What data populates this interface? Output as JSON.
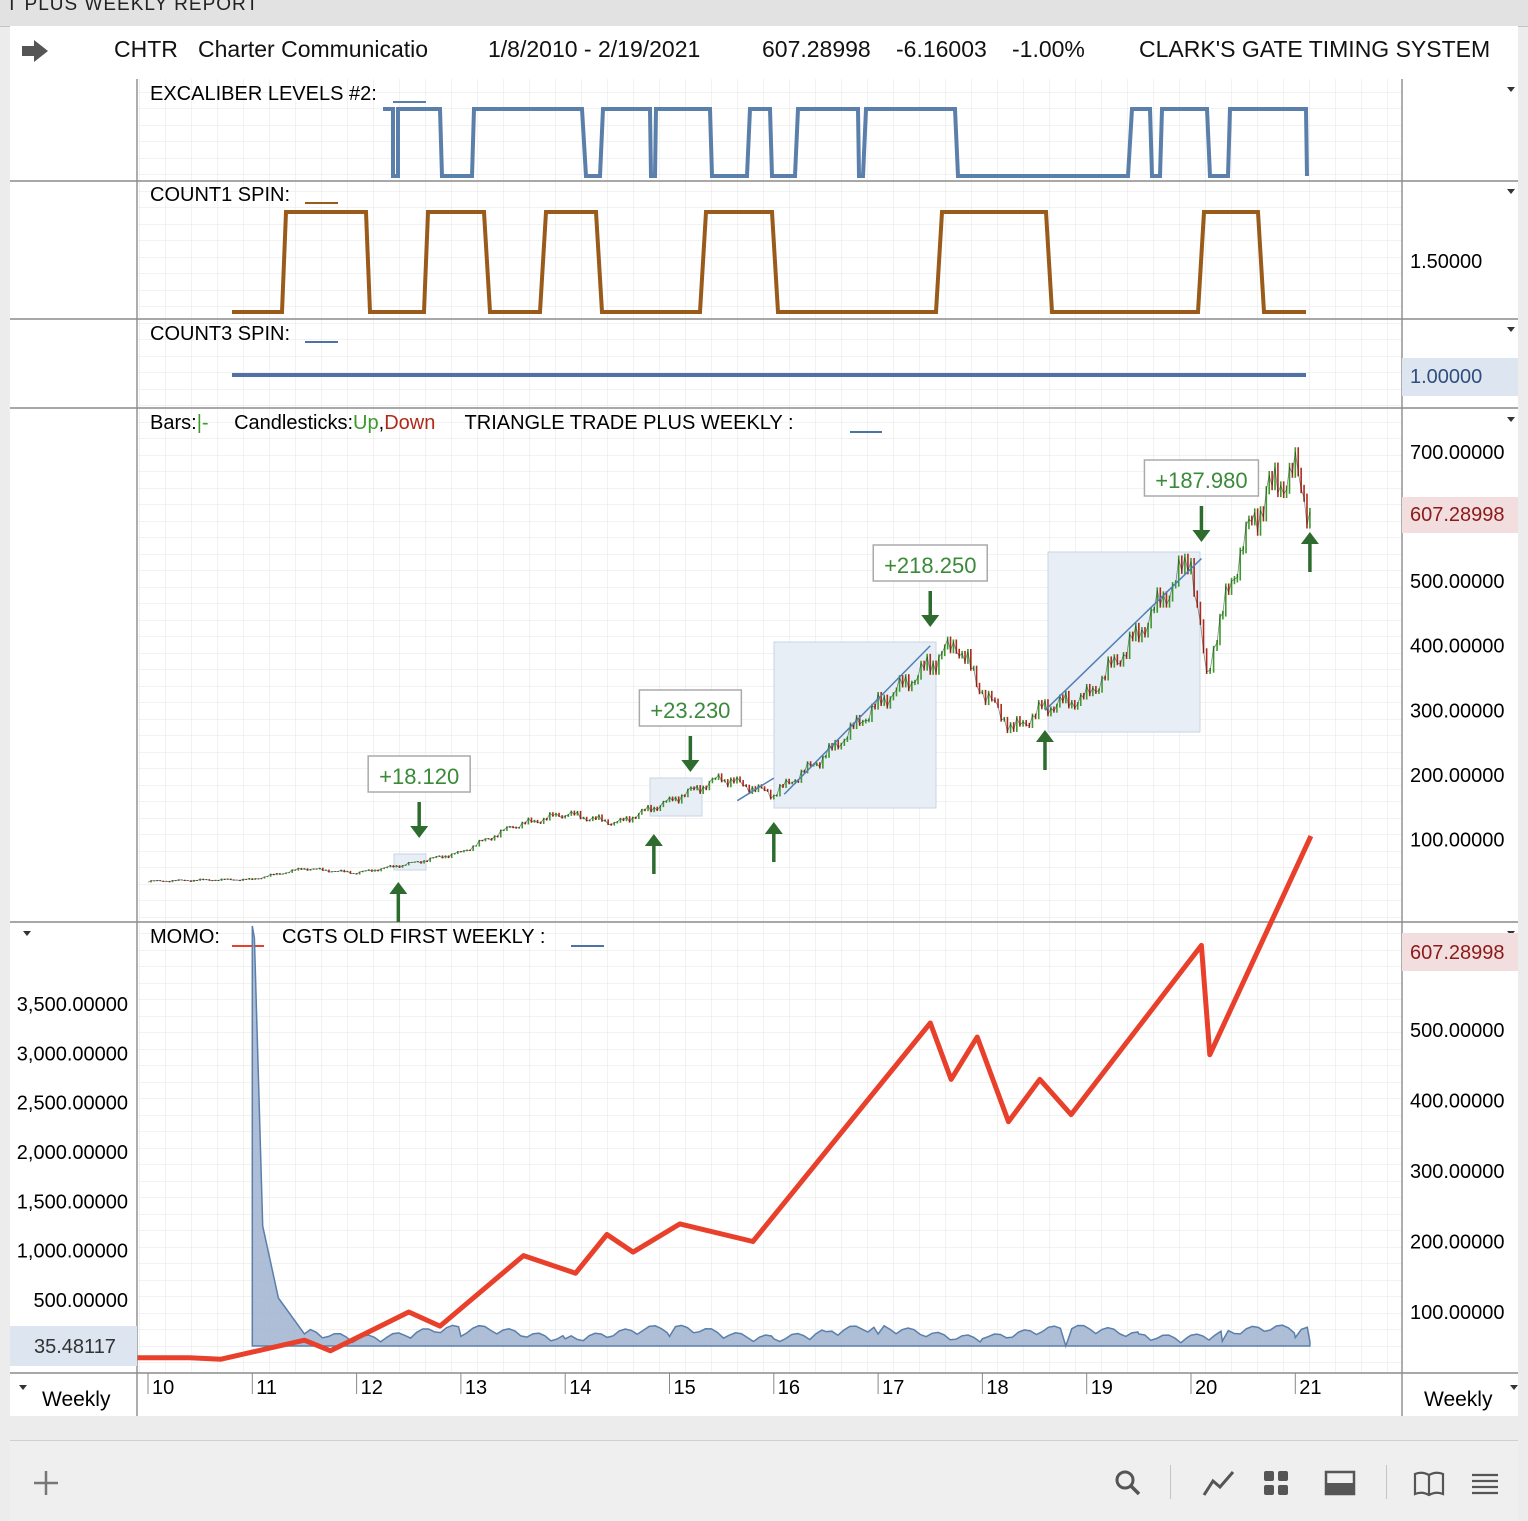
{
  "report_title": "T PLUS WEEKLY REPORT",
  "header": {
    "symbol": "CHTR",
    "name": "Charter Communicatio",
    "date_range": "1/8/2010 - 2/19/2021",
    "last": "607.28998",
    "change": "-6.16003",
    "change_pct": "-1.00%",
    "system": "CLARK'S GATE TIMING SYSTEM"
  },
  "panes": {
    "excaliber": {
      "label": "EXCALIBER LEVELS #2:",
      "color": "#5a7fab"
    },
    "count1": {
      "label": "COUNT1 SPIN:",
      "color": "#9a5a1a",
      "axis_value": "1.50000"
    },
    "count3": {
      "label": "COUNT3 SPIN:",
      "color": "#4f72a6",
      "axis_value": "1.00000"
    },
    "price": {
      "bars_label": "Bars:",
      "bars_glyph": "|-",
      "candles_label": "Candlesticks:",
      "up_label": "Up",
      "comma": ",",
      "down_label": "Down",
      "indicator_label": "TRIANGLE TRADE PLUS WEEKLY :",
      "price_badge": "607.28998",
      "trade_labels": [
        "+18.120",
        "+23.230",
        "+218.250",
        "+187.980"
      ]
    },
    "momo": {
      "label": "MOMO:",
      "label2": "CGTS OLD FIRST WEEKLY :",
      "price_badge": "607.28998",
      "left_badge": "35.48117"
    }
  },
  "footer": {
    "left_period": "Weekly",
    "right_period": "Weekly"
  },
  "colors": {
    "up": "#3a9a2a",
    "down": "#b02a1a",
    "price_line": "#4f7fb5",
    "momo": "#e8402a",
    "arrow": "#2e6b2e",
    "label_green": "#3a8a3a"
  },
  "toolbar_icons": [
    "plus-icon",
    "search-icon",
    "chart-line-icon",
    "grid-icon",
    "panel-icon",
    "book-icon",
    "menu-icon"
  ],
  "chart_data": [
    {
      "type": "line",
      "title": "TRIANGLE TRADE PLUS WEEKLY",
      "x_tick_labels": [
        "10",
        "11",
        "12",
        "13",
        "14",
        "15",
        "16",
        "17",
        "18",
        "19",
        "20",
        "21"
      ],
      "x": [
        2010.0,
        2010.5,
        2011.0,
        2011.5,
        2012.0,
        2012.5,
        2013.0,
        2013.5,
        2014.0,
        2014.5,
        2015.0,
        2015.5,
        2016.0,
        2016.5,
        2017.0,
        2017.5,
        2017.75,
        2018.0,
        2018.3,
        2018.6,
        2019.0,
        2019.5,
        2020.0,
        2020.15,
        2020.25,
        2020.5,
        2020.75,
        2021.0,
        2021.14
      ],
      "series": [
        {
          "values": [
            35,
            37,
            38,
            55,
            48,
            62,
            80,
            120,
            140,
            125,
            160,
            195,
            170,
            230,
            310,
            370,
            405,
            330,
            270,
            305,
            320,
            420,
            535,
            350,
            420,
            560,
            640,
            670,
            607.29
          ]
        }
      ],
      "ylim": [
        0,
        720
      ],
      "y_tick_labels": [
        "100.00000",
        "200.00000",
        "300.00000",
        "400.00000",
        "500.00000",
        "700.00000"
      ],
      "annotations": [
        {
          "text": "+18.120",
          "x": 2012.6
        },
        {
          "text": "+23.230",
          "x": 2015.2
        },
        {
          "text": "+218.250",
          "x": 2017.5
        },
        {
          "text": "+187.980",
          "x": 2020.1
        }
      ]
    },
    {
      "type": "line",
      "title": "MOMO",
      "series": [
        {
          "x": [
            2009.9,
            2010.4,
            2010.7,
            2011.5,
            2011.75,
            2012.5,
            2012.8,
            2013.6,
            2014.1,
            2014.4,
            2014.65,
            2015.1,
            2015.8,
            2017.5,
            2017.7,
            2017.95,
            2018.25,
            2018.55,
            2018.85,
            2020.1,
            2020.18,
            2021.15
          ],
          "values": [
            35,
            35,
            33,
            60,
            45,
            100,
            80,
            180,
            155,
            210,
            185,
            225,
            200,
            510,
            430,
            490,
            370,
            430,
            380,
            620,
            465,
            775
          ]
        }
      ],
      "right_axis_labels": [
        "100.00000",
        "200.00000",
        "300.00000",
        "400.00000",
        "500.00000"
      ]
    },
    {
      "type": "area",
      "title": "CGTS OLD FIRST WEEKLY",
      "left_axis_labels": [
        "500.00000",
        "1,000.00000",
        "1,500.00000",
        "2,000.00000",
        "2,500.00000",
        "3,000.00000",
        "3,500.00000"
      ],
      "series": [
        {
          "x": [
            2011.0,
            2011.02,
            2011.1,
            2011.25,
            2011.5,
            2012.0,
            2013.0,
            2014.0,
            2015.0,
            2016.0,
            2016.5,
            2017.0,
            2018.0,
            2018.8,
            2019.5,
            2020.0,
            2020.3,
            2021.0,
            2021.14
          ],
          "values": [
            3500,
            3400,
            1000,
            400,
            100,
            50,
            80,
            60,
            80,
            60,
            120,
            100,
            60,
            0,
            100,
            90,
            40,
            70,
            35.48
          ]
        }
      ]
    }
  ]
}
